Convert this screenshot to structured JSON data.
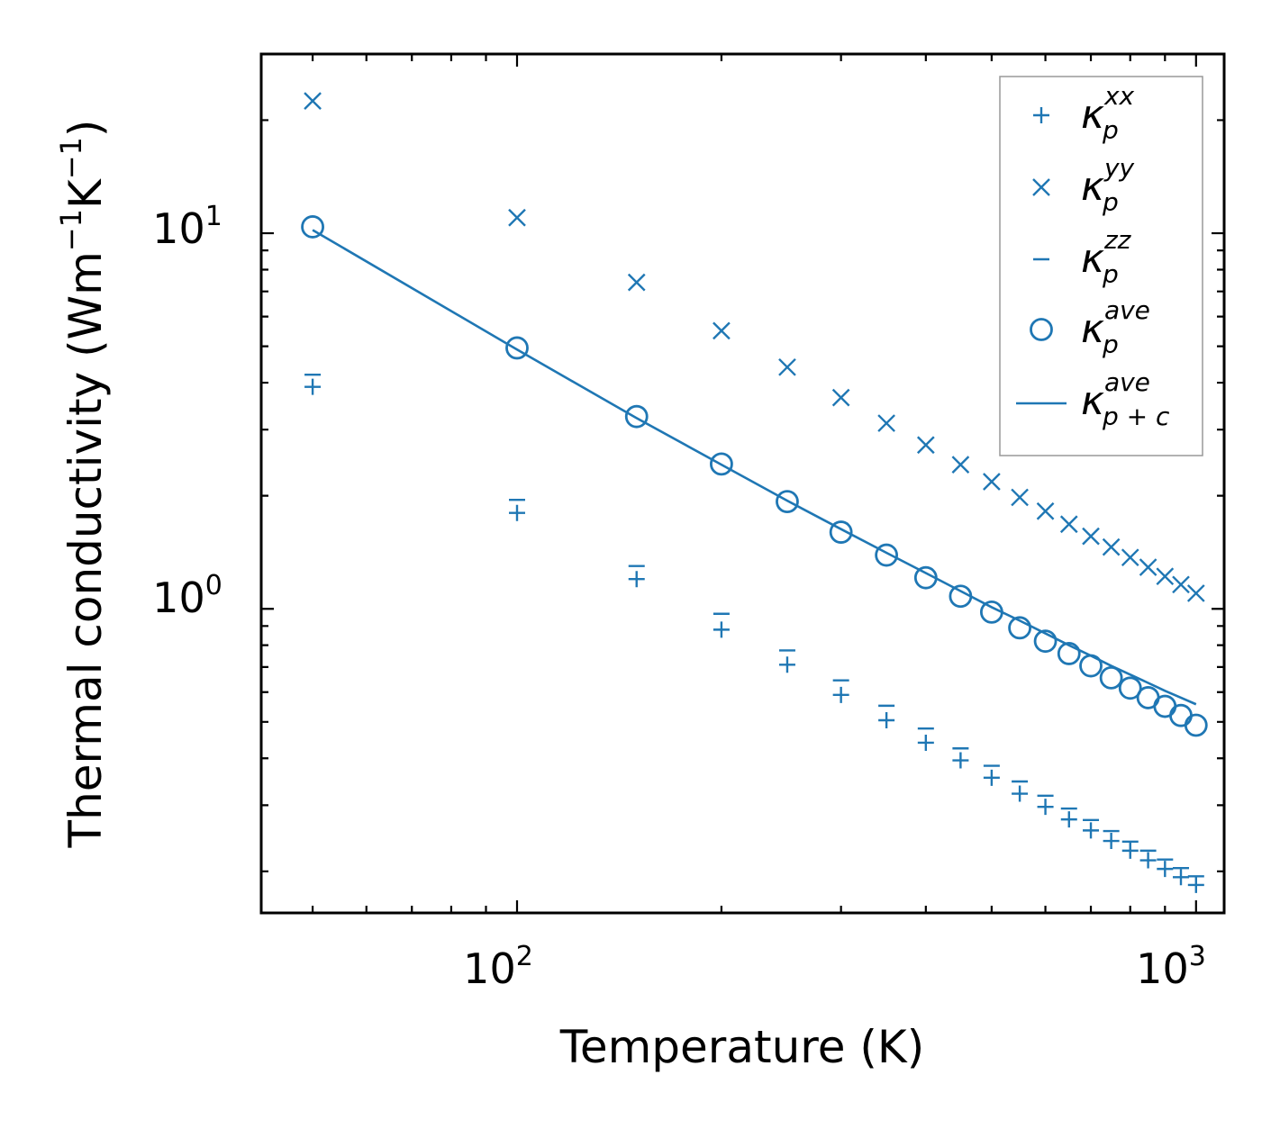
{
  "chart_data": {
    "type": "scatter",
    "title": "",
    "xlabel": "Temperature (K)",
    "ylabel": {
      "main": "Thermal conductivity (Wm",
      "exp1": "−1",
      "mid": "K",
      "exp2": "−1",
      "close": ")"
    },
    "xscale": "log",
    "yscale": "log",
    "xlim": [
      42,
      1100
    ],
    "ylim": [
      0.155,
      30
    ],
    "x_ticks": [
      {
        "base": "10",
        "exp": "2",
        "value": 100
      },
      {
        "base": "10",
        "exp": "3",
        "value": 1000
      }
    ],
    "y_ticks": [
      {
        "base": "10",
        "exp": "0",
        "value": 1
      },
      {
        "base": "10",
        "exp": "1",
        "value": 10
      }
    ],
    "legend_position": "top-right",
    "color": "#1f77b4",
    "x": [
      50,
      100,
      150,
      200,
      250,
      300,
      350,
      400,
      450,
      500,
      550,
      600,
      650,
      700,
      750,
      800,
      850,
      900,
      950,
      1000
    ],
    "series": [
      {
        "name": "kappa_p_xx",
        "legend": {
          "sym": "κ",
          "sub": "p",
          "sup": "xx"
        },
        "marker": "plus",
        "values": [
          3.9,
          1.8,
          1.2,
          0.88,
          0.71,
          0.59,
          0.505,
          0.44,
          0.395,
          0.355,
          0.322,
          0.297,
          0.275,
          0.257,
          0.241,
          0.227,
          0.214,
          0.203,
          0.193,
          0.184
        ]
      },
      {
        "name": "kappa_p_yy",
        "legend": {
          "sym": "κ",
          "sub": "p",
          "sup": "yy"
        },
        "marker": "x",
        "values": [
          22.5,
          11.0,
          7.4,
          5.5,
          4.4,
          3.65,
          3.12,
          2.73,
          2.42,
          2.18,
          1.98,
          1.82,
          1.68,
          1.56,
          1.46,
          1.37,
          1.29,
          1.22,
          1.16,
          1.1
        ]
      },
      {
        "name": "kappa_p_zz",
        "legend": {
          "sym": "κ",
          "sub": "p",
          "sup": "zz"
        },
        "marker": "hline",
        "values": [
          4.2,
          1.95,
          1.3,
          0.97,
          0.775,
          0.645,
          0.552,
          0.48,
          0.425,
          0.382,
          0.347,
          0.318,
          0.294,
          0.274,
          0.256,
          0.24,
          0.227,
          0.215,
          0.204,
          0.194
        ]
      },
      {
        "name": "kappa_p_ave",
        "legend": {
          "sym": "κ",
          "sub": "p",
          "sup": "ave"
        },
        "marker": "circle",
        "values": [
          10.4,
          4.95,
          3.25,
          2.43,
          1.93,
          1.6,
          1.39,
          1.21,
          1.08,
          0.98,
          0.89,
          0.82,
          0.76,
          0.705,
          0.655,
          0.615,
          0.58,
          0.55,
          0.52,
          0.49
        ]
      },
      {
        "name": "kappa_p+c_ave",
        "legend": {
          "sym": "κ",
          "sub": "p + c",
          "sup": "ave"
        },
        "marker": "line",
        "values": [
          10.2,
          4.9,
          3.22,
          2.42,
          1.94,
          1.63,
          1.41,
          1.245,
          1.115,
          1.01,
          0.93,
          0.86,
          0.8,
          0.75,
          0.705,
          0.668,
          0.635,
          0.605,
          0.58,
          0.557
        ]
      }
    ]
  }
}
